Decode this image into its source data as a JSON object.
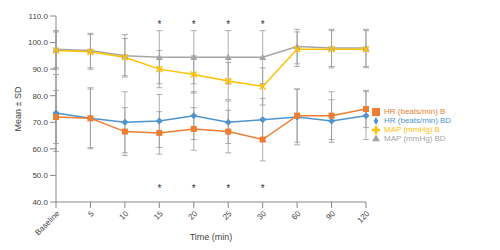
{
  "chart_data": {
    "type": "line",
    "x_label": "Time (min)",
    "y_label": "Mean ± SD",
    "categories": [
      "Baseline",
      "5",
      "10",
      "15",
      "20",
      "25",
      "30",
      "60",
      "90",
      "120"
    ],
    "ylim": [
      40,
      110
    ],
    "yticks": [
      {
        "value": 40,
        "label": "40.0"
      },
      {
        "value": 50,
        "label": "50.0"
      },
      {
        "value": 60,
        "label": "60.0"
      },
      {
        "value": 70,
        "label": "70.0"
      },
      {
        "value": 80,
        "label": "80.0"
      },
      {
        "value": 90,
        "label": "90.0"
      },
      {
        "value": 100,
        "label": "100.0"
      },
      {
        "value": 110,
        "label": "110.0"
      }
    ],
    "grid": false,
    "legend": "right",
    "series": [
      {
        "name": "HR (beats/min) BD",
        "color": "#4f94cd",
        "marker": "diamond",
        "values": [
          73.5,
          71.5,
          70,
          70.5,
          72.5,
          70,
          71,
          72,
          70.5,
          72.5
        ],
        "sd": [
          14.5,
          11.5,
          11.5,
          10,
          9,
          8,
          8,
          10.5,
          8,
          9
        ]
      },
      {
        "name": "HR (beats/min) B",
        "color": "#ed7d31",
        "marker": "square",
        "values": [
          72,
          71.5,
          66.5,
          66,
          67.5,
          66.5,
          63.5,
          72.5,
          72.5,
          75
        ],
        "sd": [
          10,
          11,
          9,
          8,
          8,
          8,
          8,
          10,
          9,
          7
        ]
      },
      {
        "name": "MAP (mmHg) BD",
        "color": "#a5a5a5",
        "marker": "triangle",
        "values": [
          97.5,
          97,
          95,
          94.5,
          94.5,
          94.5,
          94.5,
          98.5,
          98,
          98
        ],
        "sd": [
          7,
          6.5,
          8,
          10,
          10,
          10,
          10,
          6.5,
          7,
          7
        ]
      },
      {
        "name": "MAP (mmHg) B",
        "color": "#ffc000",
        "marker": "x",
        "values": [
          97,
          96.5,
          94.5,
          90,
          88,
          85.5,
          83.5,
          97.5,
          97.5,
          97.5
        ],
        "sd": [
          7,
          6.5,
          7,
          7,
          7,
          7,
          7,
          6.5,
          7,
          7
        ]
      }
    ],
    "annotations": [
      {
        "text": "*",
        "x": "15",
        "y": 107
      },
      {
        "text": "*",
        "x": "20",
        "y": 107
      },
      {
        "text": "*",
        "x": "25",
        "y": 107
      },
      {
        "text": "*",
        "x": "30",
        "y": 107
      },
      {
        "text": "*",
        "x": "15",
        "y": 45
      },
      {
        "text": "*",
        "x": "20",
        "y": 45
      },
      {
        "text": "*",
        "x": "25",
        "y": 45
      },
      {
        "text": "*",
        "x": "30",
        "y": 45
      }
    ]
  }
}
